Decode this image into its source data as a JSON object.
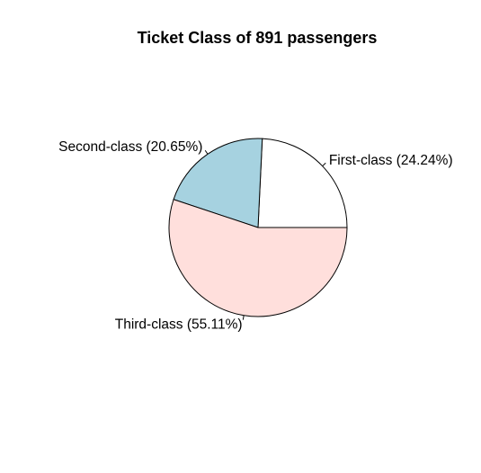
{
  "chart_data": {
    "type": "pie",
    "title": "Ticket Class of 891 passengers",
    "slices": [
      {
        "name": "First-class",
        "label": "First-class (24.24%)",
        "value": 24.24,
        "color": "#ffffff"
      },
      {
        "name": "Second-class",
        "label": "Second-class (20.65%)",
        "value": 20.65,
        "color": "#a6d2e0"
      },
      {
        "name": "Third-class",
        "label": "Third-class (55.11%)",
        "value": 55.11,
        "color": "#ffdfdc"
      }
    ],
    "start_angle_deg": 0,
    "direction": "counterclockwise",
    "legend": "none"
  }
}
